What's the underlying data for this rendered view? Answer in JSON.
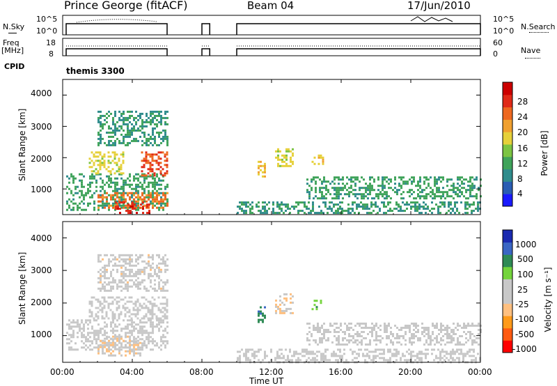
{
  "header": {
    "station": "Prince George (fitACF)",
    "beam": "Beam 04",
    "date": "17/Jun/2010"
  },
  "strips": {
    "nsky_label": "N.Sky",
    "nsky_ticks": [
      "10^5",
      "10^0"
    ],
    "nsearch_label": "N.Search",
    "nsearch_ticks": [
      "10^5",
      "10^0"
    ],
    "freq_label_line1": "Freq",
    "freq_label_line2": "[MHz]",
    "freq_ticks": [
      "18",
      "8"
    ],
    "nave_label": "Nave",
    "nave_ticks": [
      "60",
      "0"
    ],
    "cpid_label": "CPID",
    "cpid_value": "themis 3300"
  },
  "colors": {
    "power_scale": [
      "#1a1aff",
      "#2a5db3",
      "#2f8c8c",
      "#3fa35a",
      "#7cc442",
      "#e6d03a",
      "#f0a030",
      "#ee6820",
      "#e02a18",
      "#cc0000"
    ],
    "velocity_scale": [
      "#ff0000",
      "#ff5a10",
      "#ff9a1a",
      "#ffc080",
      "#c8c8c8",
      "#c8c8c8",
      "#74d43c",
      "#2e8a55",
      "#3a66c4",
      "#1a2ab0"
    ]
  },
  "chart_data": [
    {
      "type": "heatmap",
      "name": "power",
      "xlabel": "",
      "ylabel": "Slant Range [km]",
      "yticks": [
        "1000",
        "2000",
        "3000",
        "4000"
      ],
      "ylim": [
        180,
        4500
      ],
      "xlim": [
        0,
        24
      ],
      "colorbar_label": "Power [dB]",
      "colorbar_ticks": [
        "4",
        "8",
        "12",
        "16",
        "20",
        "24",
        "28"
      ],
      "colorbar_range": [
        0,
        30
      ],
      "data_gaps_hours": [
        [
          6.0,
          8.0
        ],
        [
          8.45,
          10.0
        ]
      ],
      "regions": [
        {
          "t0": 0.2,
          "t1": 6.0,
          "r0": 300,
          "r1": 1500,
          "v": 10
        },
        {
          "t0": 2.0,
          "t1": 6.0,
          "r0": 400,
          "r1": 900,
          "v": 22
        },
        {
          "t0": 3.0,
          "t1": 5.0,
          "r0": 250,
          "r1": 600,
          "v": 26
        },
        {
          "t0": 1.5,
          "t1": 3.5,
          "r0": 1500,
          "r1": 2200,
          "v": 16
        },
        {
          "t0": 4.5,
          "t1": 6.0,
          "r0": 1400,
          "r1": 2200,
          "v": 24
        },
        {
          "t0": 2.0,
          "t1": 6.0,
          "r0": 2400,
          "r1": 3500,
          "v": 9
        },
        {
          "t0": 11.2,
          "t1": 11.6,
          "r0": 1400,
          "r1": 1900,
          "v": 18
        },
        {
          "t0": 12.2,
          "t1": 13.2,
          "r0": 1700,
          "r1": 2300,
          "v": 16
        },
        {
          "t0": 14.3,
          "t1": 15.0,
          "r0": 1800,
          "r1": 2100,
          "v": 17
        },
        {
          "t0": 10.0,
          "t1": 24.0,
          "r0": 200,
          "r1": 600,
          "v": 9
        },
        {
          "t0": 14.0,
          "t1": 24.0,
          "r0": 700,
          "r1": 1400,
          "v": 10
        }
      ]
    },
    {
      "type": "heatmap",
      "name": "velocity",
      "xlabel": "Time UT",
      "ylabel": "Slant Range [km]",
      "yticks": [
        "1000",
        "2000",
        "3000",
        "4000"
      ],
      "ylim": [
        180,
        4500
      ],
      "xlim": [
        0,
        24
      ],
      "xticks": [
        "00:00",
        "04:00",
        "08:00",
        "12:00",
        "16:00",
        "20:00",
        "00:00"
      ],
      "colorbar_label": "Velocity [m s⁻¹]",
      "colorbar_ticks": [
        "-1000",
        "-500",
        "-100",
        "-25",
        "25",
        "100",
        "500",
        "1000"
      ],
      "colorbar_range": [
        -1000,
        1000
      ],
      "data_gaps_hours": [
        [
          6.0,
          8.0
        ],
        [
          8.45,
          10.0
        ]
      ],
      "regions": [
        {
          "t0": 0.2,
          "t1": 6.0,
          "r0": 600,
          "r1": 1500,
          "v": 0
        },
        {
          "t0": 2.0,
          "t1": 4.5,
          "r0": 400,
          "r1": 1000,
          "v": -150
        },
        {
          "t0": 1.5,
          "t1": 6.0,
          "r0": 1500,
          "r1": 2200,
          "v": 0
        },
        {
          "t0": 2.0,
          "t1": 6.0,
          "r0": 2400,
          "r1": 3500,
          "v": -100
        },
        {
          "t0": 11.2,
          "t1": 11.6,
          "r0": 1400,
          "r1": 1900,
          "v": 600
        },
        {
          "t0": 12.2,
          "t1": 13.2,
          "r0": 1700,
          "r1": 2300,
          "v": -150
        },
        {
          "t0": 14.3,
          "t1": 15.0,
          "r0": 1800,
          "r1": 2100,
          "v": 300
        },
        {
          "t0": 10.0,
          "t1": 24.0,
          "r0": 200,
          "r1": 600,
          "v": 60
        },
        {
          "t0": 14.0,
          "t1": 24.0,
          "r0": 700,
          "r1": 1400,
          "v": 0
        }
      ]
    }
  ]
}
